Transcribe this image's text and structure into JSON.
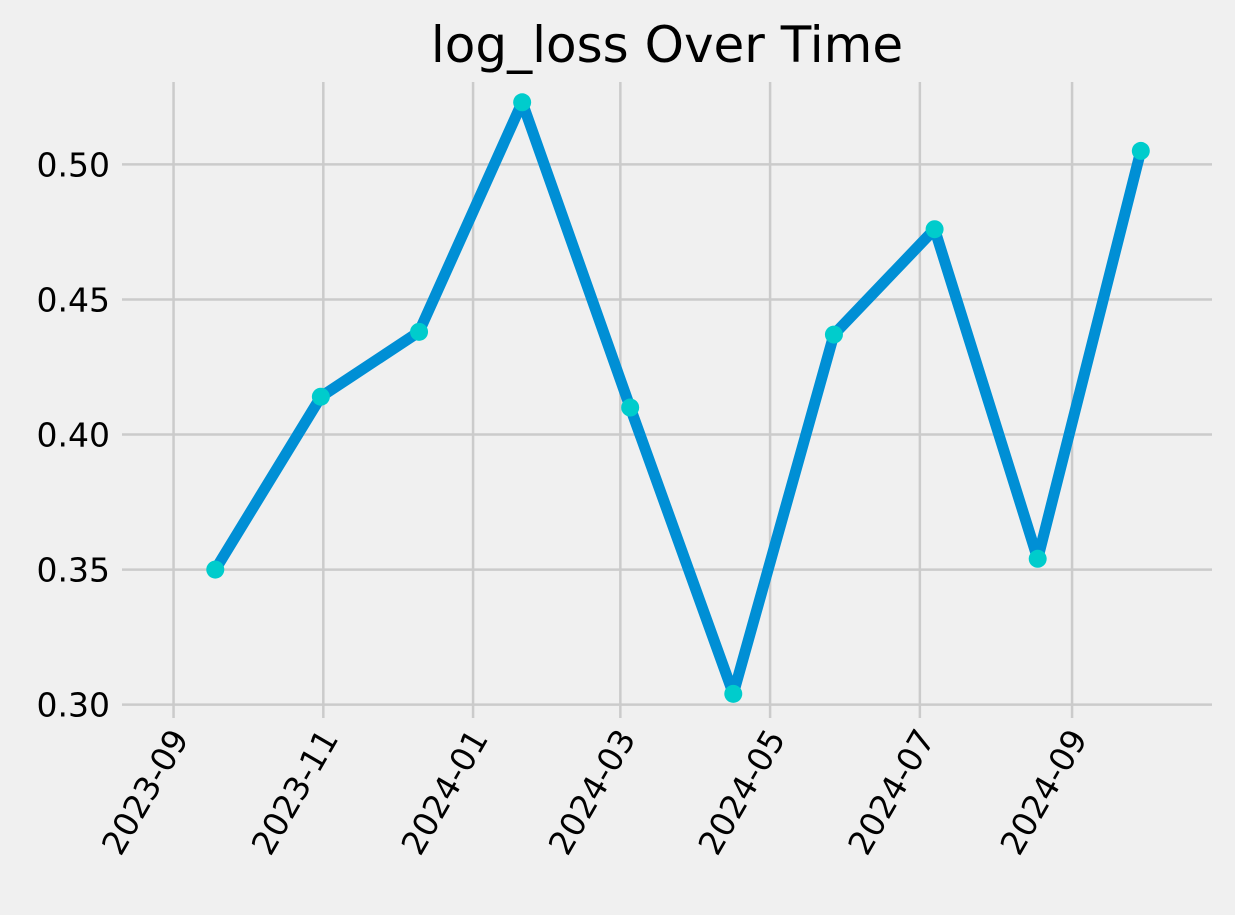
{
  "chart_data": {
    "type": "line",
    "title": "log_loss Over Time",
    "xlabel": "",
    "ylabel": "",
    "x_axis": {
      "scale": "date",
      "range": [
        "2023-08-11",
        "2024-10-28"
      ],
      "ticks": [
        "2023-09-01",
        "2023-11-01",
        "2024-01-01",
        "2024-03-01",
        "2024-05-01",
        "2024-07-01",
        "2024-09-01"
      ],
      "tick_labels": [
        "2023-09",
        "2023-11",
        "2024-01",
        "2024-03",
        "2024-05",
        "2024-07",
        "2024-09"
      ],
      "tick_rotation": -60
    },
    "y_axis": {
      "range": [
        0.2995,
        0.5305
      ],
      "ticks": [
        0.3,
        0.35,
        0.4,
        0.45,
        0.5
      ],
      "tick_labels": [
        "0.30",
        "0.35",
        "0.40",
        "0.45",
        "0.50"
      ]
    },
    "grid": true,
    "series": [
      {
        "line_color": "#008fd5",
        "marker_color": "#00cccc",
        "points": [
          {
            "x": "2023-09-18",
            "y": 0.35
          },
          {
            "x": "2023-10-31",
            "y": 0.414
          },
          {
            "x": "2023-12-10",
            "y": 0.438
          },
          {
            "x": "2024-01-21",
            "y": 0.523
          },
          {
            "x": "2024-03-05",
            "y": 0.41
          },
          {
            "x": "2024-04-16",
            "y": 0.304
          },
          {
            "x": "2024-05-27",
            "y": 0.437
          },
          {
            "x": "2024-07-07",
            "y": 0.476
          },
          {
            "x": "2024-08-18",
            "y": 0.354
          },
          {
            "x": "2024-09-29",
            "y": 0.505
          }
        ]
      }
    ]
  }
}
